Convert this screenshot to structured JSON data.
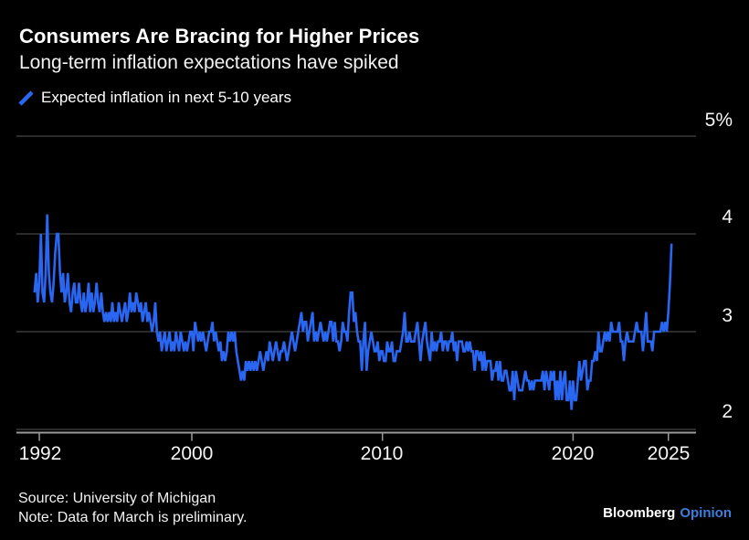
{
  "header": {
    "title": "Consumers Are Bracing for Higher Prices",
    "subtitle": "Long-term inflation expectations have spiked"
  },
  "legend": {
    "label": "Expected inflation in next 5-10 years"
  },
  "footer": {
    "source": "Source: University of Michigan",
    "note": "Note: Data for March is preliminary.",
    "brand": "Bloomberg",
    "brand_suffix": "Opinion"
  },
  "colors": {
    "background": "#000000",
    "line": "#2966f2",
    "grid": "#565656",
    "axis": "#9a9a9a",
    "text": "#ffffff",
    "brand_blue": "#3d7edb"
  },
  "chart_data": {
    "type": "line",
    "title": "Consumers Are Bracing for Higher Prices",
    "subtitle": "Long-term inflation expectations have spiked",
    "series_name": "Expected inflation in next 5-10 years",
    "unit": "%",
    "grid": true,
    "legend_position": "top-left",
    "y_axis_side": "right",
    "xlim": [
      1990.8,
      2026.45
    ],
    "ylim": [
      2,
      5
    ],
    "x_ticks": [
      {
        "value": 1992,
        "label": "1992"
      },
      {
        "value": 2000,
        "label": "2000"
      },
      {
        "value": 2010,
        "label": "2010"
      },
      {
        "value": 2020,
        "label": "2020"
      },
      {
        "value": 2025,
        "label": "2025"
      }
    ],
    "y_ticks": [
      {
        "value": 5,
        "label": "5%"
      },
      {
        "value": 4,
        "label": "4"
      },
      {
        "value": 3,
        "label": "3"
      },
      {
        "value": 2,
        "label": "2"
      }
    ],
    "x_start_year": 1991.75,
    "x_step_years": 0.0833333,
    "values": [
      3.4,
      3.6,
      3.3,
      3.5,
      4.0,
      3.4,
      3.3,
      3.6,
      4.2,
      3.6,
      3.4,
      3.3,
      3.5,
      3.8,
      4.0,
      4.0,
      3.6,
      3.4,
      3.6,
      3.3,
      3.4,
      3.6,
      3.3,
      3.2,
      3.4,
      3.5,
      3.3,
      3.3,
      3.5,
      3.3,
      3.2,
      3.4,
      3.2,
      3.3,
      3.5,
      3.2,
      3.4,
      3.2,
      3.3,
      3.5,
      3.3,
      3.2,
      3.4,
      3.2,
      3.1,
      3.2,
      3.1,
      3.2,
      3.1,
      3.3,
      3.1,
      3.2,
      3.1,
      3.3,
      3.2,
      3.1,
      3.2,
      3.3,
      3.1,
      3.2,
      3.4,
      3.2,
      3.3,
      3.2,
      3.4,
      3.3,
      3.2,
      3.3,
      3.1,
      3.2,
      3.3,
      3.1,
      3.2,
      3.1,
      3.0,
      3.1,
      3.3,
      3.0,
      2.9,
      3.0,
      2.8,
      2.9,
      3.0,
      2.8,
      2.9,
      3.0,
      2.8,
      2.9,
      2.8,
      3.0,
      2.9,
      2.8,
      3.0,
      2.9,
      2.8,
      2.9,
      2.8,
      2.9,
      3.0,
      3.0,
      2.8,
      3.1,
      3.0,
      2.9,
      3.0,
      2.9,
      3.0,
      2.9,
      2.8,
      2.9,
      3.0,
      3.0,
      3.1,
      2.9,
      3.0,
      2.9,
      2.8,
      2.9,
      2.7,
      2.8,
      2.7,
      2.8,
      3.0,
      2.9,
      3.0,
      2.9,
      3.0,
      2.8,
      2.7,
      2.6,
      2.5,
      2.6,
      2.5,
      2.7,
      2.6,
      2.7,
      2.6,
      2.7,
      2.6,
      2.7,
      2.6,
      2.7,
      2.8,
      2.7,
      2.6,
      2.7,
      2.8,
      2.7,
      2.9,
      2.8,
      2.7,
      2.8,
      2.9,
      2.8,
      2.7,
      2.8,
      2.8,
      2.9,
      2.8,
      2.7,
      2.8,
      2.9,
      3.0,
      2.9,
      2.8,
      2.9,
      3.0,
      3.1,
      3.2,
      3.0,
      3.1,
      3.1,
      2.9,
      3.0,
      3.1,
      3.2,
      2.9,
      3.0,
      2.9,
      3.0,
      3.1,
      3.0,
      2.9,
      3.0,
      2.9,
      3.0,
      3.1,
      3.1,
      2.9,
      3.1,
      2.9,
      2.9,
      2.8,
      2.9,
      3.1,
      3.0,
      3.0,
      2.9,
      3.2,
      3.4,
      3.4,
      3.1,
      3.2,
      3.0,
      2.9,
      2.9,
      2.6,
      2.9,
      3.1,
      2.6,
      2.8,
      2.9,
      3.0,
      2.9,
      2.8,
      2.8,
      2.9,
      2.7,
      2.8,
      2.8,
      2.7,
      2.7,
      2.9,
      2.8,
      2.8,
      2.9,
      2.7,
      2.7,
      2.8,
      2.8,
      2.8,
      2.9,
      3.0,
      3.2,
      2.9,
      2.9,
      3.0,
      2.9,
      2.9,
      2.9,
      3.0,
      3.1,
      2.9,
      2.7,
      2.9,
      3.0,
      3.1,
      2.9,
      2.8,
      2.7,
      3.0,
      2.8,
      2.9,
      2.8,
      2.9,
      2.9,
      3.0,
      2.8,
      2.9,
      2.9,
      2.8,
      2.9,
      2.9,
      3.0,
      2.8,
      2.9,
      2.7,
      2.9,
      2.9,
      2.9,
      2.8,
      2.8,
      2.9,
      2.8,
      2.9,
      2.8,
      2.8,
      2.6,
      2.8,
      2.8,
      2.7,
      2.8,
      2.6,
      2.8,
      2.6,
      2.7,
      2.7,
      2.7,
      2.5,
      2.6,
      2.6,
      2.7,
      2.5,
      2.7,
      2.5,
      2.5,
      2.6,
      2.6,
      2.5,
      2.4,
      2.4,
      2.6,
      2.3,
      2.6,
      2.5,
      2.4,
      2.4,
      2.4,
      2.5,
      2.6,
      2.5,
      2.5,
      2.4,
      2.5,
      2.4,
      2.5,
      2.5,
      2.5,
      2.5,
      2.5,
      2.6,
      2.4,
      2.6,
      2.5,
      2.4,
      2.6,
      2.5,
      2.6,
      2.3,
      2.5,
      2.3,
      2.6,
      2.3,
      2.5,
      2.6,
      2.3,
      2.3,
      2.5,
      2.2,
      2.5,
      2.3,
      2.3,
      2.5,
      2.7,
      2.5,
      2.6,
      2.7,
      2.7,
      2.4,
      2.5,
      2.5,
      2.7,
      2.7,
      2.8,
      2.7,
      3.0,
      2.8,
      2.8,
      2.9,
      3.0,
      2.9,
      3.0,
      2.9,
      3.1,
      3.0,
      3.0,
      3.0,
      3.0,
      3.1,
      2.9,
      2.9,
      2.7,
      2.9,
      3.0,
      2.9,
      2.9,
      2.9,
      2.9,
      3.0,
      3.1,
      3.0,
      3.0,
      3.0,
      2.8,
      3.0,
      3.2,
      2.9,
      2.9,
      2.9,
      2.8,
      3.0,
      3.0,
      3.0,
      3.0,
      3.0,
      3.1,
      3.0,
      3.1,
      3.0,
      3.2,
      3.5,
      3.9
    ]
  }
}
